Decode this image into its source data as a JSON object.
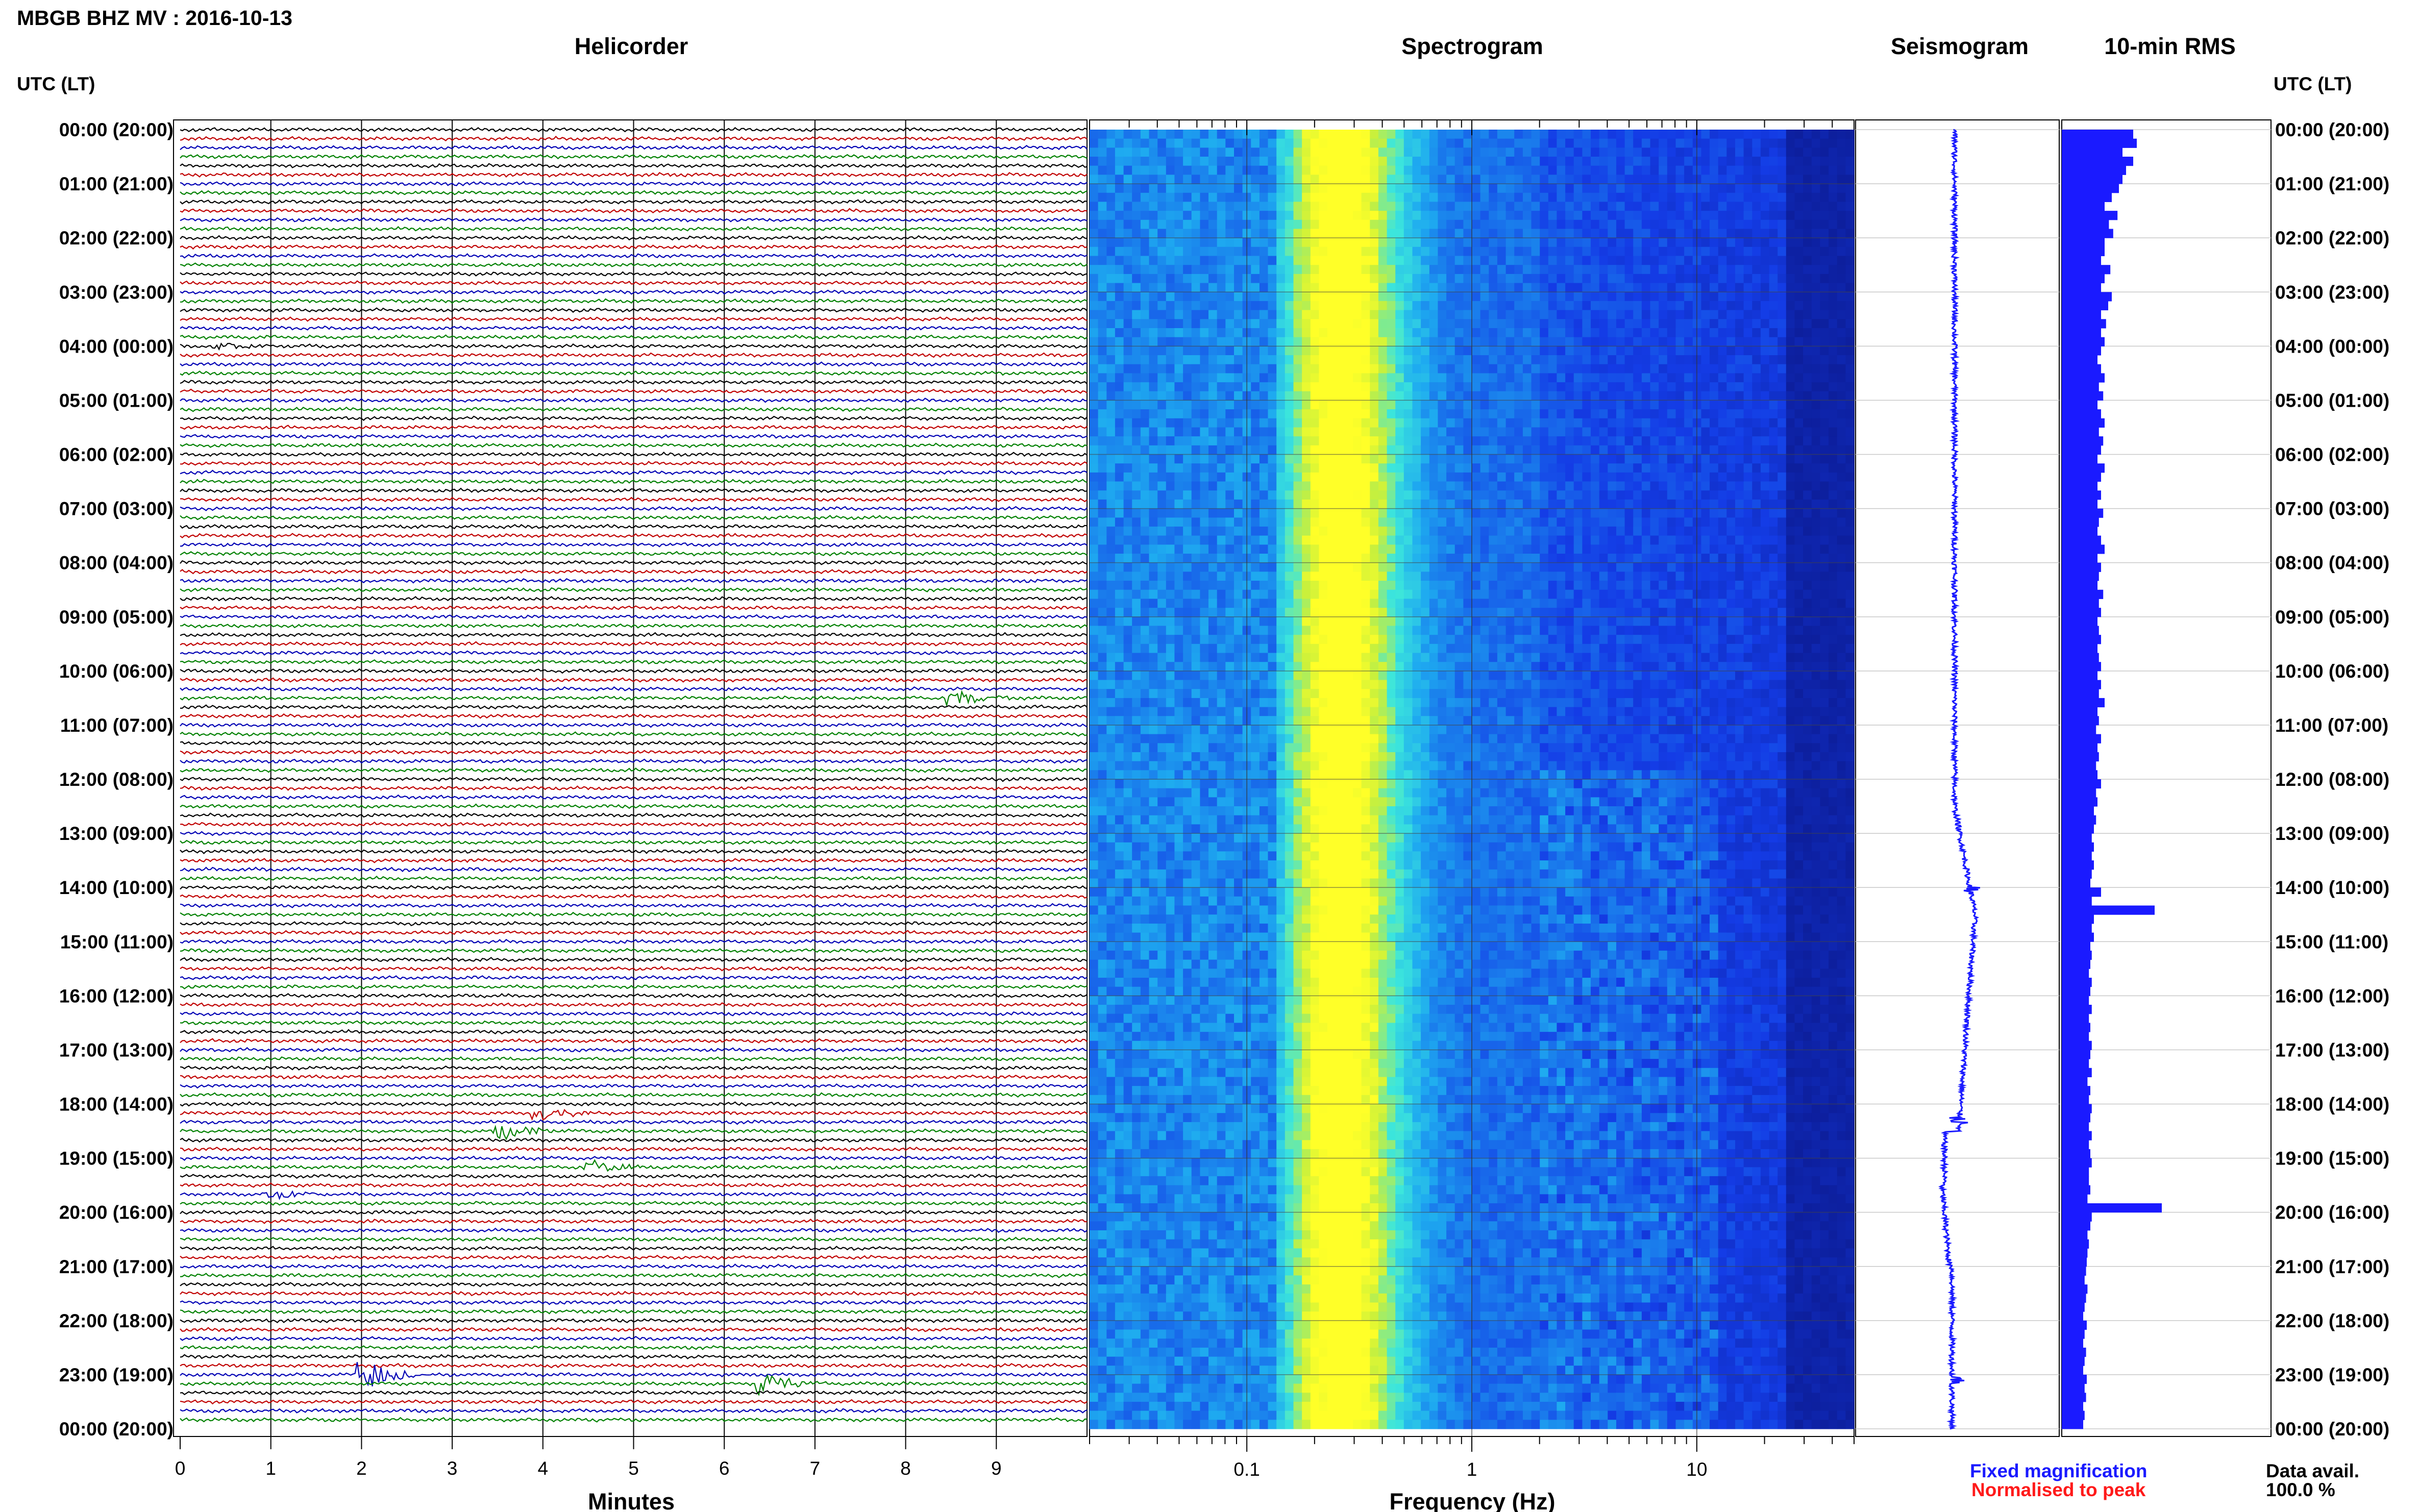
{
  "header": {
    "title": "MBGB BHZ MV : 2016-10-13",
    "utc_label_left": "UTC (LT)",
    "utc_label_right": "UTC (LT)"
  },
  "panels": {
    "helicorder": "Helicorder",
    "spectrogram": "Spectrogram",
    "seismogram": "Seismogram",
    "rms": "10-min RMS"
  },
  "footer": {
    "minutes_label": "Minutes",
    "frequency_label": "Frequency (Hz)",
    "fixed_magnification": "Fixed magnification",
    "normalised_to_peak": "Normalised to peak",
    "data_avail_label": "Data avail.",
    "data_avail_value": "100.0 %"
  },
  "colors": {
    "trace_cycle": [
      "#000000",
      "#c00000",
      "#0000b4",
      "#008000"
    ],
    "seismogram": "#1a1aff",
    "rms_bar": "#1a1aff",
    "fixed_magnification": "#1a1aff",
    "normalised_to_peak": "#ff1a1a",
    "spectrogram_low": "#0a1aa0",
    "spectrogram_high": "#ffff30"
  },
  "chart_data": {
    "type": "heatmap",
    "time_labels": [
      "00:00 (20:00)",
      "01:00 (21:00)",
      "02:00 (22:00)",
      "03:00 (23:00)",
      "04:00 (00:00)",
      "05:00 (01:00)",
      "06:00 (02:00)",
      "07:00 (03:00)",
      "08:00 (04:00)",
      "09:00 (05:00)",
      "10:00 (06:00)",
      "11:00 (07:00)",
      "12:00 (08:00)",
      "13:00 (09:00)",
      "14:00 (10:00)",
      "15:00 (11:00)",
      "16:00 (12:00)",
      "17:00 (13:00)",
      "18:00 (14:00)",
      "19:00 (15:00)",
      "20:00 (16:00)",
      "21:00 (17:00)",
      "22:00 (18:00)",
      "23:00 (19:00)",
      "00:00 (20:00)"
    ],
    "minutes_ticks": [
      "0",
      "1",
      "2",
      "3",
      "4",
      "5",
      "6",
      "7",
      "8",
      "9"
    ],
    "minutes_range": [
      0,
      10
    ],
    "frequency_ticks": [
      "0.1",
      "1",
      "10"
    ],
    "frequency_range": [
      0.02,
      50
    ],
    "frequency_scale": "log",
    "spectrogram_peak_hz": 0.25,
    "helicorder_rows": 144,
    "helicorder_events": [
      {
        "hour": 4.0,
        "minute": 0.5,
        "amp": 1.2
      },
      {
        "hour": 10.5,
        "minute": 8.6,
        "amp": 2.0
      },
      {
        "hour": 18.17,
        "minute": 4.0,
        "amp": 2.5
      },
      {
        "hour": 18.5,
        "minute": 3.6,
        "amp": 2.2
      },
      {
        "hour": 19.17,
        "minute": 4.6,
        "amp": 2.0
      },
      {
        "hour": 19.67,
        "minute": 1.1,
        "amp": 1.2
      },
      {
        "hour": 23.0,
        "minute": 2.1,
        "amp": 4.0
      },
      {
        "hour": 23.17,
        "minute": 6.5,
        "amp": 3.0
      }
    ],
    "rms_10min": [
      1.0,
      1.05,
      0.85,
      1.0,
      0.9,
      0.85,
      0.8,
      0.7,
      0.6,
      0.78,
      0.66,
      0.72,
      0.6,
      0.6,
      0.55,
      0.68,
      0.6,
      0.55,
      0.7,
      0.65,
      0.55,
      0.62,
      0.55,
      0.6,
      0.55,
      0.5,
      0.55,
      0.6,
      0.52,
      0.58,
      0.5,
      0.55,
      0.6,
      0.52,
      0.58,
      0.55,
      0.5,
      0.6,
      0.55,
      0.5,
      0.55,
      0.5,
      0.58,
      0.52,
      0.5,
      0.55,
      0.6,
      0.5,
      0.55,
      0.52,
      0.5,
      0.58,
      0.52,
      0.55,
      0.5,
      0.52,
      0.55,
      0.5,
      0.52,
      0.55,
      0.5,
      0.55,
      0.52,
      0.6,
      0.5,
      0.52,
      0.48,
      0.55,
      0.5,
      0.52,
      0.48,
      0.5,
      0.55,
      0.48,
      0.5,
      0.45,
      0.48,
      0.45,
      0.42,
      0.45,
      0.42,
      0.45,
      0.42,
      0.4,
      0.55,
      0.42,
      1.3,
      0.45,
      0.42,
      0.45,
      0.4,
      0.42,
      0.4,
      0.38,
      0.42,
      0.4,
      0.38,
      0.42,
      0.38,
      0.4,
      0.38,
      0.42,
      0.4,
      0.38,
      0.42,
      0.36,
      0.4,
      0.38,
      0.42,
      0.4,
      0.38,
      0.42,
      0.38,
      0.4,
      0.42,
      0.38,
      0.38,
      0.4,
      0.36,
      1.4,
      0.42,
      0.4,
      0.36,
      0.38,
      0.36,
      0.35,
      0.34,
      0.32,
      0.36,
      0.34,
      0.32,
      0.3,
      0.35,
      0.32,
      0.3,
      0.34,
      0.32,
      0.3,
      0.35,
      0.32,
      0.34,
      0.3,
      0.32,
      0.3
    ]
  }
}
